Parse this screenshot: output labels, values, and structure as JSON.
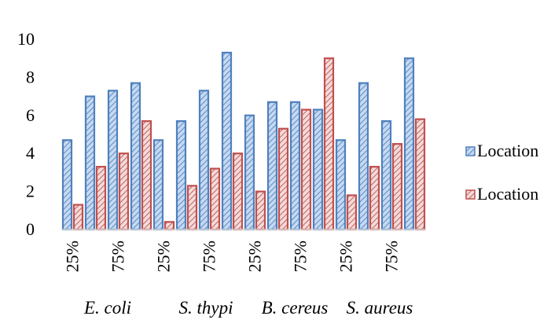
{
  "chart_data": {
    "type": "bar",
    "categories": [
      "25%",
      "",
      "75%",
      "",
      "25%",
      "",
      "75%",
      "",
      "25%",
      "",
      "75%",
      "",
      "25%",
      "",
      "75%",
      ""
    ],
    "group_labels": [
      "E. coli",
      "S. thypi",
      "B. cereus",
      "S. aureus"
    ],
    "series": [
      {
        "name": "Location",
        "color": "#4f81bd",
        "pattern": "diagonal-hatch",
        "values": [
          4.7,
          7.0,
          7.3,
          7.7,
          4.7,
          5.7,
          7.3,
          9.3,
          6.0,
          6.7,
          6.7,
          6.3,
          4.7,
          7.7,
          5.7,
          9.0
        ]
      },
      {
        "name": "Location",
        "color": "#c0504d",
        "pattern": "diagonal-hatch",
        "values": [
          1.3,
          3.3,
          4.0,
          5.7,
          0.4,
          2.3,
          3.2,
          4.0,
          2.0,
          5.3,
          6.3,
          9.0,
          1.8,
          3.3,
          4.5,
          5.8
        ]
      }
    ],
    "ylim": [
      0,
      10
    ],
    "yticks": [
      0,
      2,
      4,
      6,
      8,
      10
    ],
    "legend_position": "right",
    "grid": false
  }
}
